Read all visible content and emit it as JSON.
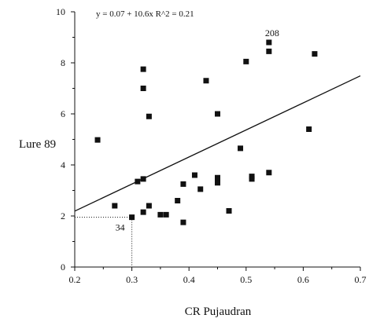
{
  "chart_data": {
    "type": "scatter",
    "title": "",
    "xlabel": "CR Pujaudran",
    "ylabel": "Lure 89",
    "xlim": [
      0.2,
      0.7
    ],
    "ylim": [
      0,
      10
    ],
    "xticks": [
      "0.2",
      "0.3",
      "0.4",
      "0.5",
      "0.6",
      "0.7"
    ],
    "yticks": [
      "0",
      "2",
      "4",
      "6",
      "8",
      "10"
    ],
    "equation_label": "y = 0.07 + 10.6x    R^2 = 0.21",
    "regression": {
      "intercept": 0.07,
      "slope": 10.6
    },
    "grid": false,
    "point_color": "#111111",
    "points": [
      {
        "x": 0.24,
        "y": 4.98
      },
      {
        "x": 0.27,
        "y": 2.4
      },
      {
        "x": 0.3,
        "y": 1.95
      },
      {
        "x": 0.31,
        "y": 3.35
      },
      {
        "x": 0.32,
        "y": 7.75
      },
      {
        "x": 0.32,
        "y": 7.0
      },
      {
        "x": 0.32,
        "y": 3.45
      },
      {
        "x": 0.32,
        "y": 2.15
      },
      {
        "x": 0.33,
        "y": 5.9
      },
      {
        "x": 0.33,
        "y": 2.4
      },
      {
        "x": 0.35,
        "y": 2.05
      },
      {
        "x": 0.36,
        "y": 2.05
      },
      {
        "x": 0.38,
        "y": 2.6
      },
      {
        "x": 0.39,
        "y": 3.25
      },
      {
        "x": 0.39,
        "y": 1.75
      },
      {
        "x": 0.41,
        "y": 3.6
      },
      {
        "x": 0.42,
        "y": 3.05
      },
      {
        "x": 0.43,
        "y": 7.3
      },
      {
        "x": 0.45,
        "y": 6.0
      },
      {
        "x": 0.45,
        "y": 3.5
      },
      {
        "x": 0.45,
        "y": 3.3
      },
      {
        "x": 0.47,
        "y": 2.2
      },
      {
        "x": 0.49,
        "y": 4.65
      },
      {
        "x": 0.5,
        "y": 8.05
      },
      {
        "x": 0.51,
        "y": 3.55
      },
      {
        "x": 0.51,
        "y": 3.45
      },
      {
        "x": 0.54,
        "y": 8.8
      },
      {
        "x": 0.54,
        "y": 8.45
      },
      {
        "x": 0.54,
        "y": 3.7
      },
      {
        "x": 0.61,
        "y": 5.4
      },
      {
        "x": 0.62,
        "y": 8.35
      }
    ],
    "annotations": [
      {
        "text": "208",
        "x": 0.54,
        "y": 8.8
      },
      {
        "text": "34",
        "x": 0.3,
        "y": 1.95
      }
    ],
    "reference_point": {
      "x": 0.3,
      "y": 1.95
    }
  }
}
